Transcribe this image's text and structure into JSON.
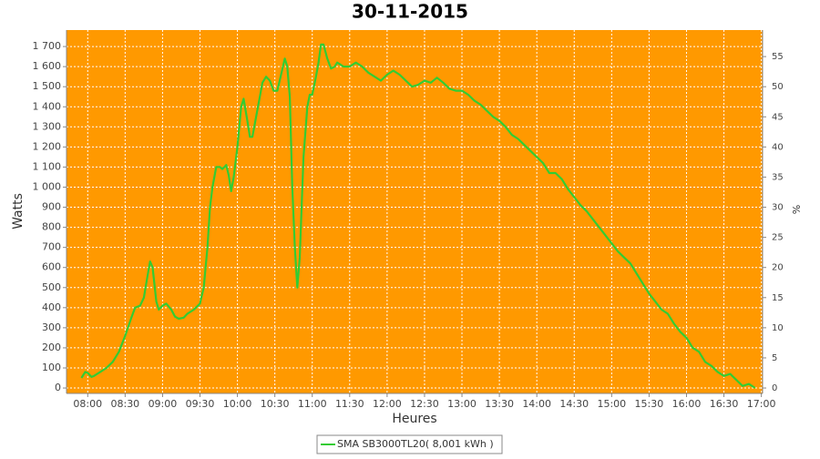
{
  "chart_data": {
    "type": "line",
    "title": "30-11-2015",
    "xlabel": "Heures",
    "ylabel": "Watts",
    "y2label": "%",
    "x": [
      "07:55",
      "07:58",
      "08:00",
      "08:03",
      "08:05",
      "08:10",
      "08:15",
      "08:20",
      "08:25",
      "08:30",
      "08:35",
      "08:38",
      "08:42",
      "08:45",
      "08:48",
      "08:50",
      "08:52",
      "08:55",
      "08:57",
      "09:00",
      "09:03",
      "09:07",
      "09:10",
      "09:13",
      "09:17",
      "09:20",
      "09:25",
      "09:30",
      "09:33",
      "09:36",
      "09:38",
      "09:40",
      "09:43",
      "09:46",
      "09:48",
      "09:51",
      "09:53",
      "09:55",
      "09:57",
      "10:00",
      "10:03",
      "10:05",
      "10:08",
      "10:10",
      "10:12",
      "10:15",
      "10:18",
      "10:20",
      "10:23",
      "10:26",
      "10:29",
      "10:32",
      "10:35",
      "10:38",
      "10:40",
      "10:42",
      "10:44",
      "10:46",
      "10:48",
      "10:50",
      "10:53",
      "10:56",
      "10:58",
      "11:00",
      "11:03",
      "11:05",
      "11:07",
      "11:09",
      "11:12",
      "11:15",
      "11:18",
      "11:20",
      "11:25",
      "11:30",
      "11:35",
      "11:40",
      "11:45",
      "11:50",
      "11:55",
      "12:00",
      "12:05",
      "12:10",
      "12:15",
      "12:20",
      "12:25",
      "12:30",
      "12:35",
      "12:40",
      "12:45",
      "12:50",
      "12:55",
      "13:00",
      "13:05",
      "13:10",
      "13:15",
      "13:20",
      "13:25",
      "13:30",
      "13:35",
      "13:40",
      "13:45",
      "13:50",
      "13:55",
      "14:00",
      "14:05",
      "14:10",
      "14:15",
      "14:20",
      "14:25",
      "14:30",
      "14:35",
      "14:40",
      "14:45",
      "14:50",
      "14:55",
      "15:00",
      "15:05",
      "15:10",
      "15:15",
      "15:20",
      "15:25",
      "15:30",
      "15:35",
      "15:40",
      "15:45",
      "15:50",
      "15:55",
      "16:00",
      "16:05",
      "16:10",
      "16:15",
      "16:20",
      "16:25",
      "16:30",
      "16:35",
      "16:40",
      "16:45",
      "16:50",
      "16:55"
    ],
    "series": [
      {
        "name": "SMA SB3000TL20( 8,001 kWh )",
        "color": "#33cc33",
        "values": [
          50,
          80,
          75,
          55,
          60,
          80,
          100,
          130,
          180,
          260,
          350,
          400,
          410,
          450,
          560,
          630,
          600,
          430,
          390,
          410,
          420,
          390,
          355,
          345,
          350,
          370,
          390,
          420,
          500,
          700,
          900,
          1000,
          1100,
          1100,
          1090,
          1110,
          1060,
          980,
          1050,
          1200,
          1400,
          1440,
          1330,
          1250,
          1250,
          1350,
          1450,
          1520,
          1550,
          1530,
          1480,
          1480,
          1560,
          1640,
          1600,
          1450,
          1000,
          700,
          500,
          650,
          1150,
          1400,
          1460,
          1460,
          1550,
          1620,
          1710,
          1710,
          1640,
          1590,
          1600,
          1620,
          1600,
          1600,
          1620,
          1600,
          1570,
          1550,
          1530,
          1560,
          1580,
          1560,
          1530,
          1500,
          1510,
          1530,
          1520,
          1545,
          1520,
          1490,
          1480,
          1480,
          1460,
          1430,
          1410,
          1380,
          1350,
          1330,
          1300,
          1260,
          1240,
          1210,
          1180,
          1150,
          1120,
          1070,
          1070,
          1040,
          990,
          950,
          910,
          880,
          840,
          800,
          760,
          720,
          680,
          650,
          620,
          570,
          520,
          470,
          430,
          390,
          370,
          320,
          280,
          250,
          200,
          180,
          130,
          110,
          80,
          60,
          70,
          40,
          10,
          20,
          0
        ]
      }
    ],
    "xlim": [
      "07:43",
      "17:01"
    ],
    "xticks": [
      "08:00",
      "08:30",
      "09:00",
      "09:30",
      "10:00",
      "10:30",
      "11:00",
      "11:30",
      "12:00",
      "12:30",
      "13:00",
      "13:30",
      "14:00",
      "14:30",
      "15:00",
      "15:30",
      "16:00",
      "16:30",
      "17:00"
    ],
    "ylim": [
      -27,
      1782
    ],
    "yticks": [
      0,
      100,
      200,
      300,
      400,
      500,
      600,
      700,
      800,
      900,
      {
        "value": 1000,
        "label": "1 000"
      },
      {
        "value": 1100,
        "label": "1 100"
      },
      {
        "value": 1200,
        "label": "1 200"
      },
      {
        "value": 1300,
        "label": "1 300"
      },
      {
        "value": 1400,
        "label": "1 400"
      },
      {
        "value": 1500,
        "label": "1 500"
      },
      {
        "value": 1600,
        "label": "1 600"
      },
      {
        "value": 1700,
        "label": "1 700"
      }
    ],
    "y2lim": [
      -0.9,
      59.4
    ],
    "y2ticks": [
      0,
      5,
      10,
      15,
      20,
      25,
      30,
      35,
      40,
      45,
      50,
      55
    ],
    "grid": true,
    "background": "#ff9900"
  }
}
